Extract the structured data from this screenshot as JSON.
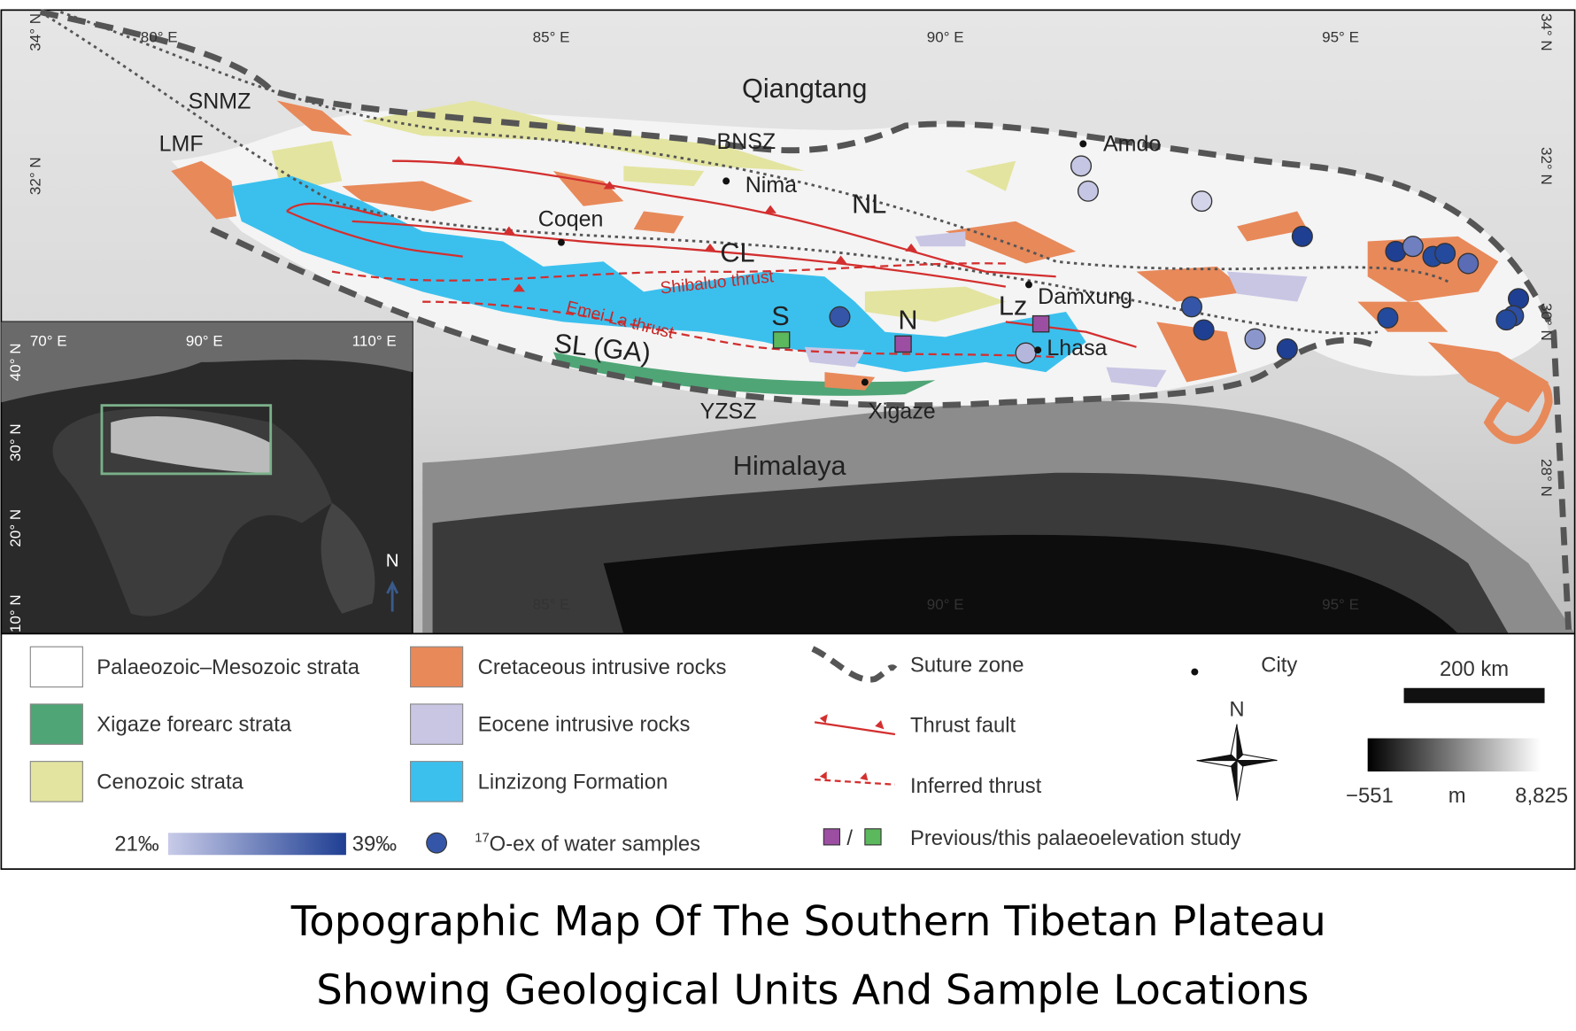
{
  "map": {
    "lon_labels_top": [
      "80° E",
      "85° E",
      "90° E",
      "95° E"
    ],
    "lon_labels_bottom": [
      "85° E",
      "90° E",
      "95° E"
    ],
    "lat_labels_left": [
      "34° N",
      "32° N"
    ],
    "lat_labels_right": [
      "34° N",
      "32° N",
      "30° N",
      "28° N"
    ],
    "places": {
      "qiangtang": "Qiangtang",
      "bnsz": "BNSZ",
      "snmz": "SNMZ",
      "lmf": "LMF",
      "amdo": "Amdo",
      "nima": "Nima",
      "nl": "NL",
      "coqen": "Coqen",
      "cl": "CL",
      "shibaluo": "Shibaluo thrust",
      "emeila": "Emei La thrust",
      "s": "S",
      "n": "N",
      "lz": "Lz",
      "damxung": "Damxung",
      "lhasa": "Lhasa",
      "sl": "SL (GA)",
      "xigaze": "Xigaze",
      "yzsz": "YZSZ",
      "himalaya": "Himalaya"
    }
  },
  "inset": {
    "lon_labels": [
      "70° E",
      "90° E",
      "110° E"
    ],
    "lat_labels": [
      "40° N",
      "30° N",
      "20° N",
      "10° N"
    ],
    "north": "N"
  },
  "legend": {
    "units": [
      "Palaeozoic–Mesozoic strata",
      "Xigaze forearc strata",
      "Cenozoic strata",
      "Cretaceous intrusive rocks",
      "Eocene intrusive rocks",
      "Linzizong Formation"
    ],
    "lines": [
      "Suture zone",
      "Thrust fault",
      "Inferred thrust"
    ],
    "study": "Previous/this palaeoelevation study",
    "study_sep": "/",
    "city": "City",
    "scale": "200 km",
    "elevation": {
      "min": "−551",
      "unit": "m",
      "max": "8,825"
    },
    "water": {
      "min": "21‰",
      "max": "39‰",
      "sup": "17",
      "text": "O-ex of water samples"
    },
    "compass": "N"
  },
  "caption": [
    "Topographic Map Of The Southern Tibetan Plateau",
    "Showing Geological Units And Sample Locations"
  ]
}
